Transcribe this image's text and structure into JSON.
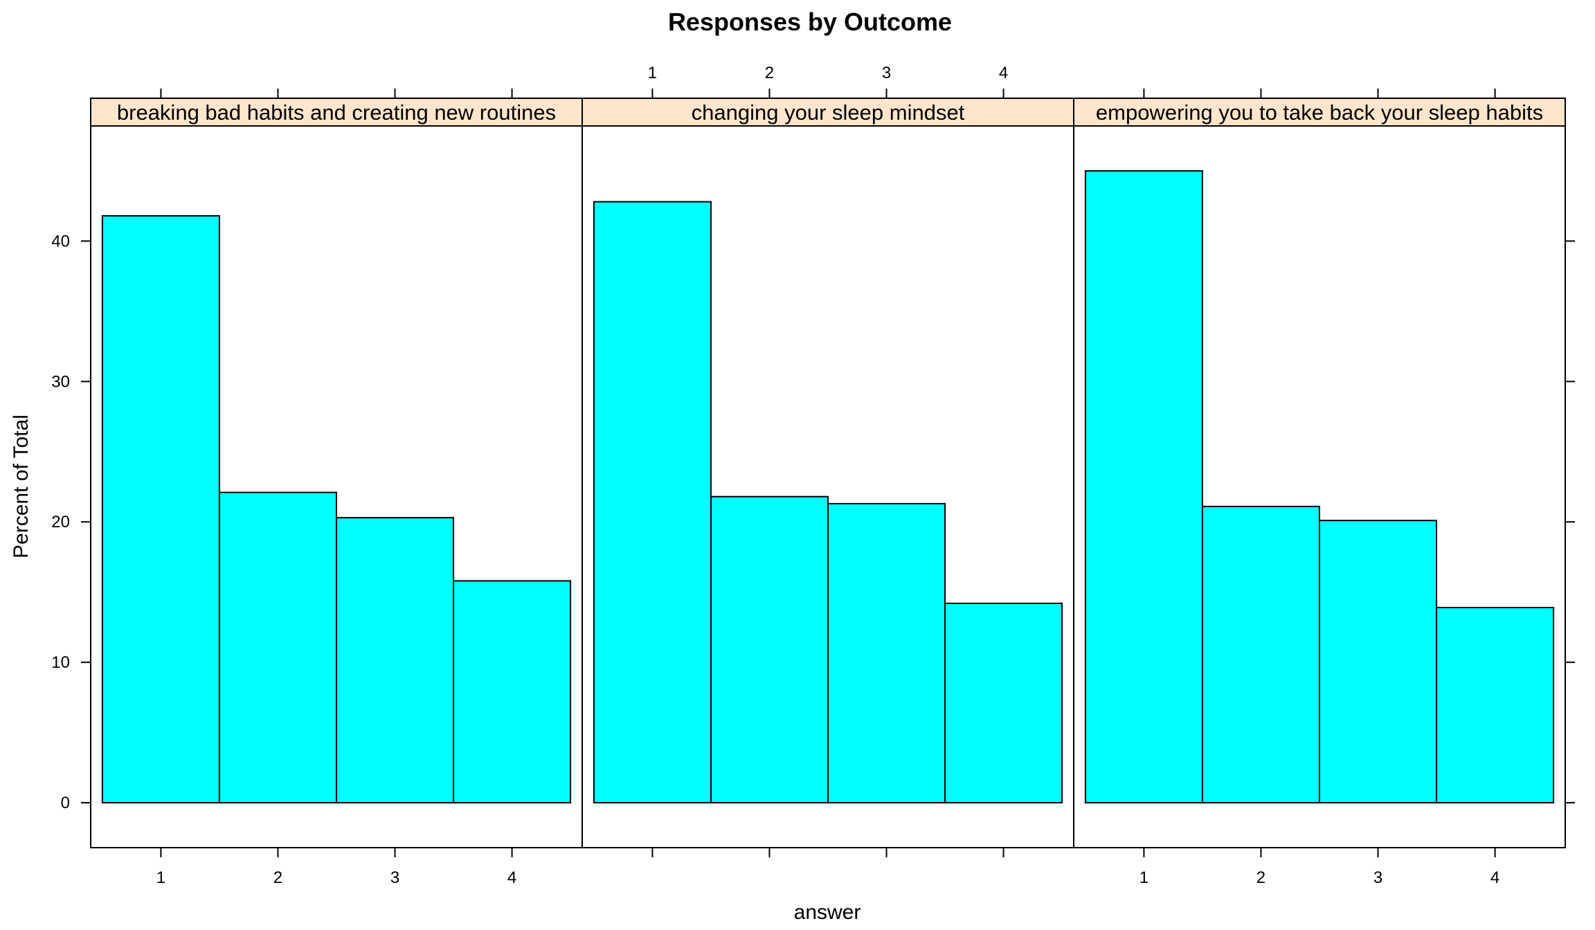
{
  "chart_data": {
    "type": "bar",
    "title": "Responses by Outcome",
    "xlabel": "answer",
    "ylabel": "Percent of Total",
    "ylim": [
      -3.2,
      48.2
    ],
    "y_ticks": [
      0,
      10,
      20,
      30,
      40
    ],
    "categories": [
      "1",
      "2",
      "3",
      "4"
    ],
    "panels": [
      {
        "name": "breaking bad habits and creating new routines",
        "values": [
          41.8,
          22.1,
          20.3,
          15.8
        ]
      },
      {
        "name": "changing your sleep mindset",
        "values": [
          42.8,
          21.8,
          21.3,
          14.2
        ]
      },
      {
        "name": "empowering you to take back your sleep habits",
        "values": [
          45.0,
          21.1,
          20.1,
          13.9
        ]
      }
    ],
    "colors": {
      "bar_fill": "#00ffff",
      "strip_bg": "#ffe5cc",
      "outline": "#000000"
    },
    "grid": false,
    "legend": "none"
  }
}
